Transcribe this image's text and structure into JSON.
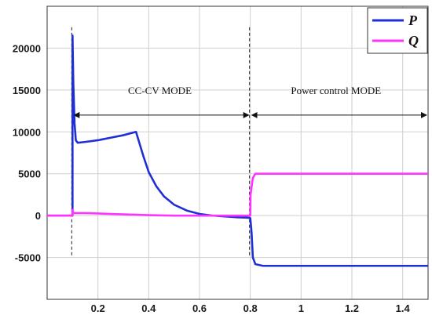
{
  "chart_data": {
    "type": "line",
    "title": "",
    "xlabel": "",
    "ylabel": "",
    "xlim": [
      0,
      1.5
    ],
    "ylim": [
      -10000,
      25000
    ],
    "x_ticks": [
      0.2,
      0.4,
      0.6,
      0.8,
      1,
      1.2,
      1.4
    ],
    "x_tick_labels": [
      "0.2",
      "0.4",
      "0.6",
      "0.8",
      "1",
      "1.2",
      "1.4"
    ],
    "y_ticks": [
      -5000,
      0,
      5000,
      10000,
      15000,
      20000
    ],
    "y_tick_labels": [
      "-5000",
      "0",
      "5000",
      "10000",
      "15000",
      "20000"
    ],
    "grid": true,
    "legend_position": "top-right",
    "colors": {
      "P": "#1f2fd6",
      "Q": "#ff33ff"
    },
    "series": [
      {
        "name": "P",
        "color": "#1f2fd6",
        "points": [
          [
            0.0,
            0
          ],
          [
            0.1,
            0
          ],
          [
            0.1,
            21500
          ],
          [
            0.103,
            16000
          ],
          [
            0.108,
            11000
          ],
          [
            0.113,
            9000
          ],
          [
            0.12,
            8700
          ],
          [
            0.15,
            8800
          ],
          [
            0.2,
            9000
          ],
          [
            0.25,
            9300
          ],
          [
            0.3,
            9600
          ],
          [
            0.35,
            10000
          ],
          [
            0.36,
            9000
          ],
          [
            0.38,
            7000
          ],
          [
            0.4,
            5200
          ],
          [
            0.43,
            3500
          ],
          [
            0.46,
            2300
          ],
          [
            0.5,
            1300
          ],
          [
            0.55,
            600
          ],
          [
            0.6,
            200
          ],
          [
            0.65,
            0
          ],
          [
            0.7,
            -100
          ],
          [
            0.75,
            -200
          ],
          [
            0.79,
            -250
          ],
          [
            0.8,
            -300
          ],
          [
            0.805,
            -2000
          ],
          [
            0.81,
            -5000
          ],
          [
            0.82,
            -5800
          ],
          [
            0.85,
            -6000
          ],
          [
            1.0,
            -6000
          ],
          [
            1.2,
            -6000
          ],
          [
            1.5,
            -6000
          ]
        ]
      },
      {
        "name": "Q",
        "color": "#ff33ff",
        "points": [
          [
            0.0,
            0
          ],
          [
            0.1,
            0
          ],
          [
            0.1,
            700
          ],
          [
            0.103,
            300
          ],
          [
            0.15,
            300
          ],
          [
            0.2,
            250
          ],
          [
            0.3,
            150
          ],
          [
            0.4,
            50
          ],
          [
            0.5,
            0
          ],
          [
            0.6,
            0
          ],
          [
            0.7,
            0
          ],
          [
            0.8,
            0
          ],
          [
            0.801,
            2500
          ],
          [
            0.81,
            4500
          ],
          [
            0.82,
            5000
          ],
          [
            0.9,
            5000
          ],
          [
            1.0,
            5000
          ],
          [
            1.2,
            5000
          ],
          [
            1.5,
            5000
          ]
        ]
      }
    ],
    "annotations": [
      {
        "text": "CC-CV MODE",
        "x_start": 0.1,
        "x_end": 0.8,
        "y": 12000,
        "arrow": "double"
      },
      {
        "text": "Power control MODE",
        "x_start": 0.8,
        "x_end": 1.5,
        "y": 12000,
        "arrow": "double"
      }
    ],
    "vertical_markers": [
      0.1,
      0.8
    ]
  }
}
